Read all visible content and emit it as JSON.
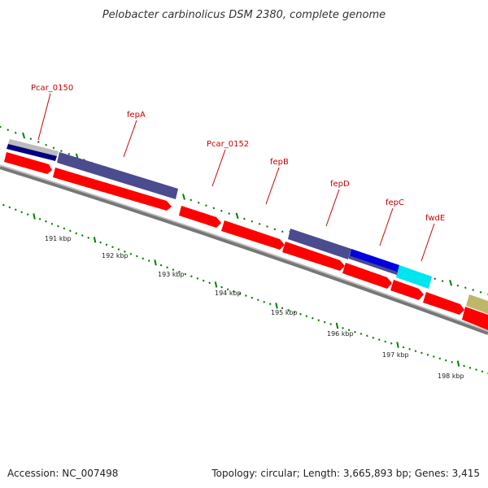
{
  "title": "Pelobacter carbinolicus DSM 2380, complete genome",
  "accession": "Accession: NC_007498",
  "topology": "Topology: circular; Length: 3,665,893 bp; Genes: 3,415",
  "colors": {
    "cds_red": "#ff0000",
    "dark_purple": "#4b4b8f",
    "blue": "#0000dd",
    "cyan": "#00e5ee",
    "olive": "#bdb76b",
    "navy": "#000080",
    "grey": "#bbbbbb",
    "green_tick": "#008000",
    "label_red": "#cc0000",
    "backbone": "#777777"
  },
  "ticks": [
    {
      "label": "191 kbp"
    },
    {
      "label": "192 kbp"
    },
    {
      "label": "193 kbp"
    },
    {
      "label": "194 kbp"
    },
    {
      "label": "195 kbp"
    },
    {
      "label": "196 kbp"
    },
    {
      "label": "197 kbp"
    },
    {
      "label": "198 kbp"
    }
  ],
  "genes": [
    {
      "name": "Pcar_0150"
    },
    {
      "name": "fepA"
    },
    {
      "name": "Pcar_0152"
    },
    {
      "name": "fepB"
    },
    {
      "name": "fepD"
    },
    {
      "name": "fepC"
    },
    {
      "name": "fwdE"
    }
  ]
}
